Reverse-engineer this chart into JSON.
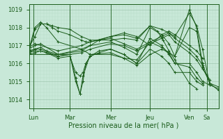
{
  "bg_color": "#c8e8d8",
  "line_color": "#1a5c1a",
  "grid_color_major": "#a0c8b0",
  "grid_color_minor": "#b8dcc8",
  "ylim": [
    1013.5,
    1019.3
  ],
  "xlim": [
    0,
    130
  ],
  "yticks": [
    1014,
    1015,
    1016,
    1017,
    1018,
    1019
  ],
  "xtick_positions": [
    3,
    28,
    56,
    83,
    110,
    122
  ],
  "xtick_labels": [
    "Lun",
    "Mar",
    "Mer",
    "Jeu",
    "Ven",
    "Sa"
  ],
  "xlabel": "Pression niveau de la mer( hPa )",
  "series": [
    [
      0,
      1016.7,
      4,
      1017.9,
      8,
      1018.2,
      12,
      1018.2,
      16,
      1018.1,
      20,
      1018.0,
      28,
      1017.9,
      36,
      1017.5,
      42,
      1017.3,
      56,
      1017.3,
      65,
      1017.4,
      74,
      1017.3,
      83,
      1018.1,
      91,
      1017.9,
      96,
      1017.7,
      100,
      1017.5,
      110,
      1018.8,
      115,
      1018.1,
      119,
      1016.8,
      124,
      1014.8,
      130,
      1014.6
    ],
    [
      0,
      1016.8,
      4,
      1018.0,
      8,
      1018.3,
      12,
      1018.0,
      20,
      1017.2,
      36,
      1016.8,
      42,
      1016.5,
      56,
      1016.5,
      65,
      1016.3,
      74,
      1016.2,
      83,
      1017.2,
      91,
      1016.9,
      96,
      1016.6,
      100,
      1016.4,
      110,
      1019.0,
      115,
      1018.0,
      119,
      1016.0,
      124,
      1014.9,
      130,
      1014.7
    ],
    [
      0,
      1016.6,
      4,
      1016.8,
      8,
      1016.9,
      12,
      1016.7,
      20,
      1016.5,
      36,
      1016.7,
      42,
      1017.0,
      56,
      1017.2,
      65,
      1016.9,
      74,
      1016.5,
      83,
      1018.0,
      91,
      1017.6,
      96,
      1017.1,
      100,
      1016.4,
      110,
      1018.0,
      115,
      1017.8,
      119,
      1015.8,
      124,
      1014.9,
      130,
      1014.5
    ],
    [
      0,
      1016.5,
      4,
      1016.6,
      8,
      1016.7,
      12,
      1016.6,
      20,
      1016.4,
      28,
      1016.5,
      32,
      1015.0,
      35,
      1014.3,
      37,
      1015.0,
      39,
      1016.0,
      42,
      1016.4,
      48,
      1016.7,
      56,
      1016.8,
      65,
      1016.5,
      74,
      1016.0,
      83,
      1017.4,
      91,
      1017.0,
      96,
      1016.5,
      100,
      1016.0,
      110,
      1016.0,
      115,
      1015.5,
      119,
      1015.0,
      124,
      1014.8
    ],
    [
      0,
      1016.6,
      4,
      1016.7,
      8,
      1016.7,
      12,
      1016.6,
      20,
      1016.3,
      28,
      1016.4,
      32,
      1015.5,
      35,
      1015.3,
      37,
      1015.5,
      39,
      1016.0,
      42,
      1016.4,
      48,
      1016.6,
      56,
      1016.8,
      65,
      1016.5,
      74,
      1016.0,
      83,
      1016.8,
      91,
      1016.4,
      96,
      1016.0,
      100,
      1015.5,
      110,
      1015.5,
      115,
      1015.0,
      119,
      1014.8
    ],
    [
      0,
      1016.7,
      4,
      1016.8,
      8,
      1016.8,
      20,
      1016.4,
      36,
      1016.6,
      42,
      1016.8,
      56,
      1017.1,
      65,
      1017.0,
      74,
      1016.7,
      83,
      1017.1,
      91,
      1017.4,
      96,
      1017.6,
      100,
      1017.2,
      110,
      1016.6,
      115,
      1016.2,
      119,
      1015.7,
      124,
      1015.1
    ],
    [
      0,
      1016.8,
      4,
      1017.0,
      8,
      1017.1,
      20,
      1016.5,
      36,
      1016.8,
      42,
      1017.0,
      48,
      1017.3,
      56,
      1017.4,
      65,
      1017.1,
      74,
      1016.8,
      83,
      1017.2,
      91,
      1017.5,
      96,
      1017.7,
      100,
      1017.4,
      110,
      1016.8,
      115,
      1016.4,
      119,
      1015.9
    ],
    [
      0,
      1016.5,
      28,
      1016.5,
      32,
      1015.2,
      35,
      1014.3,
      37,
      1015.3,
      42,
      1016.5,
      56,
      1016.6,
      65,
      1016.3,
      74,
      1015.9,
      83,
      1016.5,
      91,
      1016.8,
      96,
      1016.6,
      100,
      1016.0,
      110,
      1015.8,
      115,
      1015.2,
      119,
      1014.9
    ],
    [
      0,
      1016.9,
      4,
      1017.1,
      20,
      1016.7,
      36,
      1017.0,
      42,
      1017.2,
      56,
      1017.5,
      65,
      1017.7,
      74,
      1017.5,
      83,
      1017.0,
      91,
      1017.6,
      96,
      1017.8,
      100,
      1017.6,
      110,
      1017.0,
      115,
      1016.7,
      119,
      1016.3
    ],
    [
      0,
      1016.9,
      4,
      1017.5,
      8,
      1018.2,
      12,
      1018.2,
      16,
      1018.0,
      20,
      1017.8,
      28,
      1017.6,
      36,
      1017.3,
      39,
      1017.2,
      42,
      1017.2,
      48,
      1017.3,
      56,
      1017.5,
      65,
      1017.6,
      74,
      1017.4,
      83,
      1018.1,
      88,
      1017.8,
      92,
      1017.3,
      96,
      1016.7,
      100,
      1016.2,
      110,
      1014.9,
      115,
      1014.6
    ]
  ]
}
